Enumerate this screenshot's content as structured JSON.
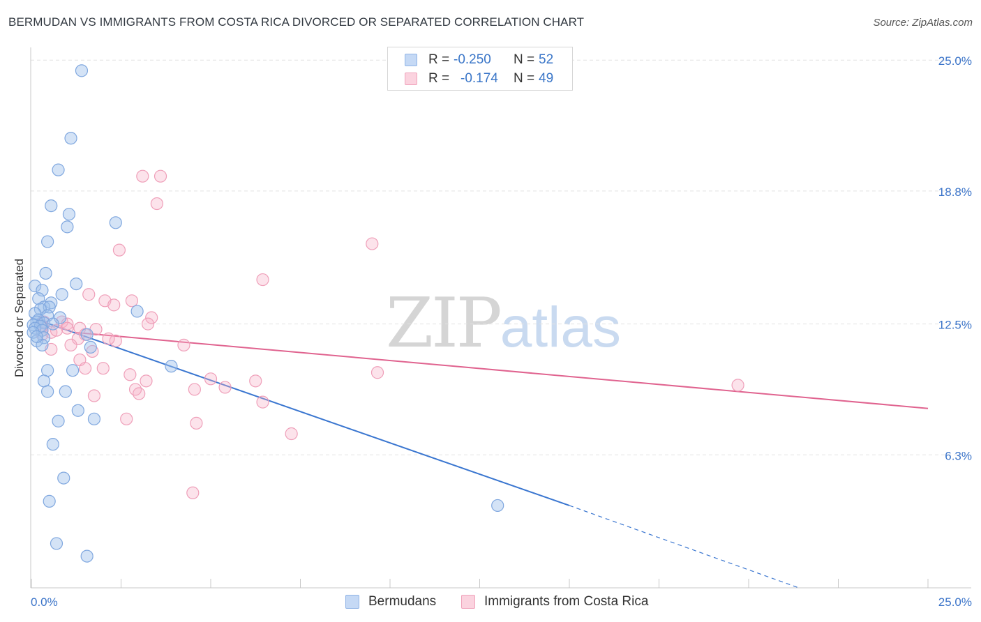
{
  "header": {
    "title": "BERMUDAN VS IMMIGRANTS FROM COSTA RICA DIVORCED OR SEPARATED CORRELATION CHART",
    "source": "Source: ZipAtlas.com"
  },
  "watermark": {
    "zip": "ZIP",
    "atlas": "atlas"
  },
  "legend_top": {
    "rows": [
      {
        "r_label": "R =",
        "r_value": "-0.250",
        "n_label": "N =",
        "n_value": "52",
        "color": "#a9c7ef"
      },
      {
        "r_label": "R =",
        "r_value": "-0.174",
        "n_label": "N =",
        "n_value": "49",
        "color": "#f6b9cb"
      }
    ]
  },
  "legend_bottom": {
    "items": [
      {
        "label": "Bermudans",
        "color": "#a9c7ef"
      },
      {
        "label": "Immigrants from Costa Rica",
        "color": "#f6b9cb"
      }
    ]
  },
  "chart_data": {
    "type": "scatter",
    "title": "BERMUDAN VS IMMIGRANTS FROM COSTA RICA DIVORCED OR SEPARATED CORRELATION CHART",
    "xlabel": "",
    "ylabel": "Divorced or Separated",
    "xlim": [
      0,
      25
    ],
    "ylim": [
      0,
      25.8
    ],
    "x_tick_labels": [
      "0.0%",
      "25.0%"
    ],
    "y_ticks": [
      6.3,
      12.5,
      18.8,
      25.0
    ],
    "y_tick_labels": [
      "6.3%",
      "12.5%",
      "18.8%",
      "25.0%"
    ],
    "grid": true,
    "colors": {
      "bermudans": "#3a76d0",
      "costa_rica": "#e0638f",
      "tick_label": "#3b74c9"
    },
    "series": [
      {
        "name": "Bermudans",
        "r": -0.25,
        "n": 52,
        "trend": {
          "x0": 0,
          "y0": 12.8,
          "x1": 15.0,
          "y1": 3.9,
          "dash_to_x": 21.4,
          "dash_to_y": 0.0
        },
        "points": [
          [
            1.4,
            24.5
          ],
          [
            1.1,
            21.3
          ],
          [
            0.75,
            19.8
          ],
          [
            0.55,
            18.1
          ],
          [
            1.05,
            17.7
          ],
          [
            2.35,
            17.3
          ],
          [
            1.0,
            17.1
          ],
          [
            0.45,
            16.4
          ],
          [
            0.4,
            14.9
          ],
          [
            1.25,
            14.4
          ],
          [
            0.1,
            14.3
          ],
          [
            0.3,
            14.1
          ],
          [
            0.85,
            13.9
          ],
          [
            0.2,
            13.7
          ],
          [
            0.55,
            13.5
          ],
          [
            0.35,
            13.3
          ],
          [
            0.5,
            13.3
          ],
          [
            0.25,
            13.2
          ],
          [
            2.95,
            13.1
          ],
          [
            0.1,
            13.0
          ],
          [
            0.45,
            12.9
          ],
          [
            0.8,
            12.8
          ],
          [
            0.2,
            12.7
          ],
          [
            0.15,
            12.6
          ],
          [
            0.35,
            12.55
          ],
          [
            0.6,
            12.5
          ],
          [
            0.05,
            12.45
          ],
          [
            0.25,
            12.4
          ],
          [
            0.1,
            12.3
          ],
          [
            0.3,
            12.2
          ],
          [
            0.05,
            12.1
          ],
          [
            1.55,
            12.0
          ],
          [
            0.35,
            11.85
          ],
          [
            0.15,
            11.7
          ],
          [
            0.3,
            11.5
          ],
          [
            1.65,
            11.4
          ],
          [
            3.9,
            10.5
          ],
          [
            0.45,
            10.3
          ],
          [
            1.15,
            10.3
          ],
          [
            0.35,
            9.8
          ],
          [
            0.45,
            9.3
          ],
          [
            0.95,
            9.3
          ],
          [
            1.3,
            8.4
          ],
          [
            0.75,
            7.9
          ],
          [
            1.75,
            8.0
          ],
          [
            0.6,
            6.8
          ],
          [
            0.9,
            5.2
          ],
          [
            0.5,
            4.1
          ],
          [
            13.0,
            3.9
          ],
          [
            0.7,
            2.1
          ],
          [
            1.55,
            1.5
          ],
          [
            0.15,
            11.9
          ]
        ]
      },
      {
        "name": "Immigrants from Costa Rica",
        "r": -0.174,
        "n": 49,
        "trend": {
          "x0": 1.2,
          "y0": 12.1,
          "x1": 25.0,
          "y1": 8.5
        },
        "points": [
          [
            3.1,
            19.5
          ],
          [
            3.6,
            19.5
          ],
          [
            3.5,
            18.2
          ],
          [
            2.45,
            16.0
          ],
          [
            9.5,
            16.3
          ],
          [
            6.45,
            14.6
          ],
          [
            1.6,
            13.9
          ],
          [
            2.05,
            13.6
          ],
          [
            2.8,
            13.6
          ],
          [
            2.3,
            13.4
          ],
          [
            3.35,
            12.8
          ],
          [
            0.85,
            12.6
          ],
          [
            1.0,
            12.5
          ],
          [
            3.25,
            12.5
          ],
          [
            0.3,
            12.4
          ],
          [
            1.35,
            12.3
          ],
          [
            1.8,
            12.25
          ],
          [
            1.0,
            12.3
          ],
          [
            0.55,
            12.1
          ],
          [
            0.7,
            12.2
          ],
          [
            1.5,
            12.0
          ],
          [
            0.3,
            12.0
          ],
          [
            1.3,
            11.8
          ],
          [
            1.1,
            11.5
          ],
          [
            2.35,
            11.7
          ],
          [
            2.15,
            11.8
          ],
          [
            4.25,
            11.5
          ],
          [
            1.7,
            11.2
          ],
          [
            0.55,
            11.3
          ],
          [
            1.35,
            10.8
          ],
          [
            1.5,
            10.4
          ],
          [
            2.0,
            10.4
          ],
          [
            2.75,
            10.1
          ],
          [
            9.65,
            10.2
          ],
          [
            5.0,
            9.9
          ],
          [
            6.25,
            9.8
          ],
          [
            3.2,
            9.8
          ],
          [
            2.9,
            9.4
          ],
          [
            3.0,
            9.2
          ],
          [
            4.55,
            9.4
          ],
          [
            5.4,
            9.5
          ],
          [
            1.75,
            9.1
          ],
          [
            19.7,
            9.6
          ],
          [
            6.45,
            8.8
          ],
          [
            2.65,
            8.0
          ],
          [
            4.6,
            7.8
          ],
          [
            7.25,
            7.3
          ],
          [
            4.5,
            4.5
          ],
          [
            0.35,
            12.6
          ]
        ]
      }
    ]
  }
}
